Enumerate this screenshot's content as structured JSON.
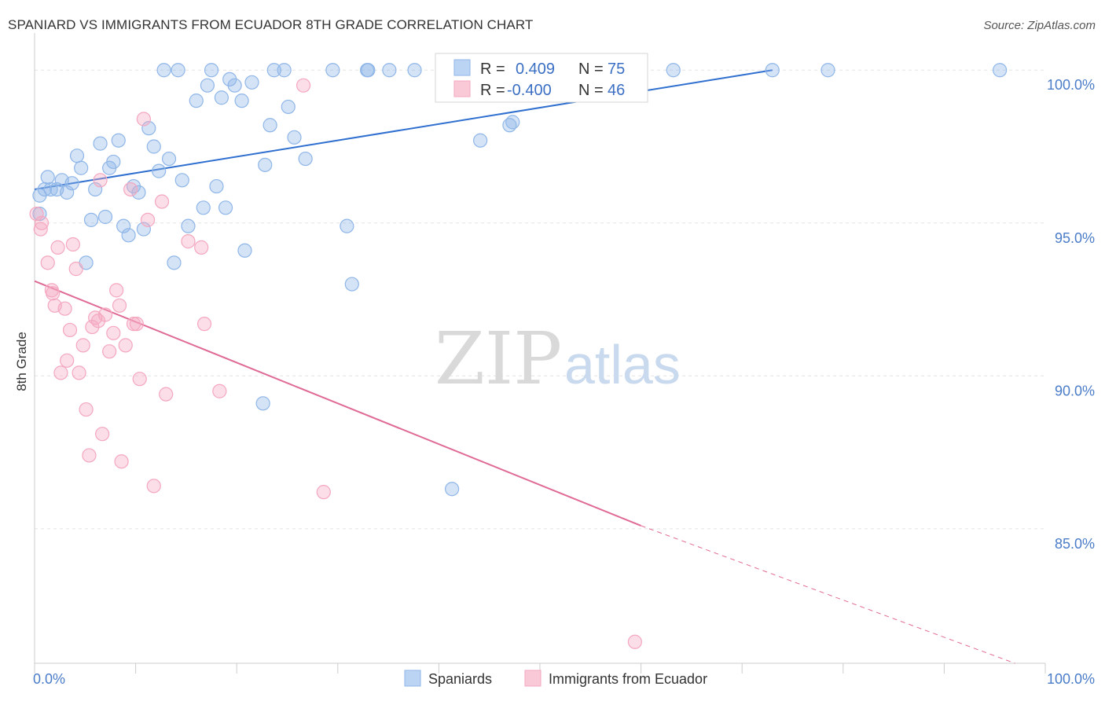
{
  "title": "SPANIARD VS IMMIGRANTS FROM ECUADOR 8TH GRADE CORRELATION CHART",
  "source": "Source: ZipAtlas.com",
  "watermark": {
    "zip": "ZIP",
    "atlas": "atlas"
  },
  "chart_data": {
    "type": "scatter",
    "xlabel": "",
    "ylabel": "8th Grade",
    "xlim": [
      0,
      100
    ],
    "ylim": [
      80.6,
      100.7
    ],
    "x_tick_labels": [
      {
        "value": 0,
        "label": "0.0%"
      },
      {
        "value": 100,
        "label": "100.0%"
      }
    ],
    "y_tick_labels": [
      {
        "value": 100,
        "label": "100.0%"
      },
      {
        "value": 95,
        "label": "95.0%"
      },
      {
        "value": 90,
        "label": "90.0%"
      },
      {
        "value": 85,
        "label": "85.0%"
      }
    ],
    "grid": true,
    "legend_position": "top-center",
    "stats_legend": [
      {
        "r_label": "R =",
        "r_value": "0.409",
        "n_label": "N =",
        "n_value": "75"
      },
      {
        "r_label": "R =",
        "r_value": "-0.400",
        "n_label": "N =",
        "n_value": "46"
      }
    ],
    "series": [
      {
        "name": "Spaniards",
        "color": "#8fb6e8",
        "line_color": "#2f6fcf",
        "trend": {
          "x0": 0,
          "y0": 96.1,
          "x1": 73,
          "y1": 100.0,
          "dashed_to": null
        },
        "points": [
          [
            0.5,
            95.3
          ],
          [
            0.5,
            95.9
          ],
          [
            1.3,
            96.5
          ],
          [
            1.6,
            96.1
          ],
          [
            2.2,
            96.1
          ],
          [
            2.7,
            96.4
          ],
          [
            3.2,
            96.0
          ],
          [
            3.7,
            96.3
          ],
          [
            4.2,
            97.2
          ],
          [
            4.6,
            96.8
          ],
          [
            5.1,
            93.7
          ],
          [
            5.6,
            95.1
          ],
          [
            6.0,
            96.1
          ],
          [
            6.5,
            97.6
          ],
          [
            7.0,
            95.2
          ],
          [
            7.4,
            96.8
          ],
          [
            7.8,
            97.0
          ],
          [
            8.3,
            97.7
          ],
          [
            8.8,
            94.9
          ],
          [
            9.3,
            94.6
          ],
          [
            9.8,
            96.2
          ],
          [
            10.3,
            96.0
          ],
          [
            10.8,
            94.8
          ],
          [
            11.3,
            98.1
          ],
          [
            11.8,
            97.5
          ],
          [
            12.3,
            96.7
          ],
          [
            12.8,
            100.0
          ],
          [
            13.3,
            97.1
          ],
          [
            13.8,
            93.7
          ],
          [
            14.2,
            100.0
          ],
          [
            14.6,
            96.4
          ],
          [
            15.2,
            94.9
          ],
          [
            16.0,
            99.0
          ],
          [
            16.7,
            95.5
          ],
          [
            17.1,
            99.5
          ],
          [
            17.5,
            100.0
          ],
          [
            18.0,
            96.2
          ],
          [
            18.5,
            99.1
          ],
          [
            18.9,
            95.5
          ],
          [
            19.3,
            99.7
          ],
          [
            19.8,
            99.5
          ],
          [
            20.5,
            99.0
          ],
          [
            20.8,
            94.1
          ],
          [
            21.5,
            99.6
          ],
          [
            22.6,
            89.1
          ],
          [
            22.8,
            96.9
          ],
          [
            23.3,
            98.2
          ],
          [
            23.7,
            100.0
          ],
          [
            24.7,
            100.0
          ],
          [
            25.1,
            98.8
          ],
          [
            25.7,
            97.8
          ],
          [
            26.8,
            97.1
          ],
          [
            29.5,
            100.0
          ],
          [
            30.9,
            94.9
          ],
          [
            31.4,
            93.0
          ],
          [
            32.9,
            100.0
          ],
          [
            33.0,
            100.0
          ],
          [
            35.1,
            100.0
          ],
          [
            37.6,
            100.0
          ],
          [
            41.3,
            86.3
          ],
          [
            44.1,
            97.7
          ],
          [
            47.0,
            98.2
          ],
          [
            47.3,
            98.3
          ],
          [
            49.3,
            100.0
          ],
          [
            49.9,
            100.0
          ],
          [
            50.9,
            100.0
          ],
          [
            52.3,
            100.0
          ],
          [
            53.0,
            99.4
          ],
          [
            53.6,
            100.0
          ],
          [
            57.6,
            100.0
          ],
          [
            63.2,
            100.0
          ],
          [
            73.0,
            100.0
          ],
          [
            78.5,
            100.0
          ],
          [
            95.5,
            100.0
          ],
          [
            1.0,
            96.1
          ]
        ]
      },
      {
        "name": "Immigrants from Ecuador",
        "color": "#f4a7bf",
        "line_color": "#e06a96",
        "trend": {
          "x0": 0,
          "y0": 93.1,
          "x1": 60,
          "y1": 85.1,
          "dashed_to": {
            "x": 97,
            "y": 80.6
          }
        },
        "points": [
          [
            0.2,
            95.3
          ],
          [
            0.6,
            94.8
          ],
          [
            0.7,
            95.0
          ],
          [
            1.3,
            93.7
          ],
          [
            1.7,
            92.8
          ],
          [
            1.8,
            92.7
          ],
          [
            2.0,
            92.3
          ],
          [
            2.3,
            94.2
          ],
          [
            2.6,
            90.1
          ],
          [
            3.0,
            92.2
          ],
          [
            3.2,
            90.5
          ],
          [
            3.5,
            91.5
          ],
          [
            3.8,
            94.3
          ],
          [
            4.1,
            93.5
          ],
          [
            4.4,
            90.1
          ],
          [
            4.8,
            91.0
          ],
          [
            5.1,
            88.9
          ],
          [
            5.4,
            87.4
          ],
          [
            5.7,
            91.6
          ],
          [
            6.0,
            91.9
          ],
          [
            6.3,
            91.8
          ],
          [
            6.7,
            88.1
          ],
          [
            7.0,
            92.0
          ],
          [
            7.4,
            90.8
          ],
          [
            7.8,
            91.4
          ],
          [
            8.1,
            92.8
          ],
          [
            8.4,
            92.3
          ],
          [
            8.6,
            87.2
          ],
          [
            9.0,
            91.0
          ],
          [
            9.5,
            96.1
          ],
          [
            9.8,
            91.7
          ],
          [
            10.1,
            91.7
          ],
          [
            10.4,
            89.9
          ],
          [
            10.8,
            98.4
          ],
          [
            11.2,
            95.1
          ],
          [
            11.8,
            86.4
          ],
          [
            12.6,
            95.7
          ],
          [
            13.0,
            89.4
          ],
          [
            15.2,
            94.4
          ],
          [
            16.5,
            94.2
          ],
          [
            16.8,
            91.7
          ],
          [
            18.3,
            89.5
          ],
          [
            26.6,
            99.5
          ],
          [
            28.6,
            86.2
          ],
          [
            59.4,
            81.3
          ],
          [
            6.5,
            96.4
          ]
        ]
      }
    ]
  }
}
